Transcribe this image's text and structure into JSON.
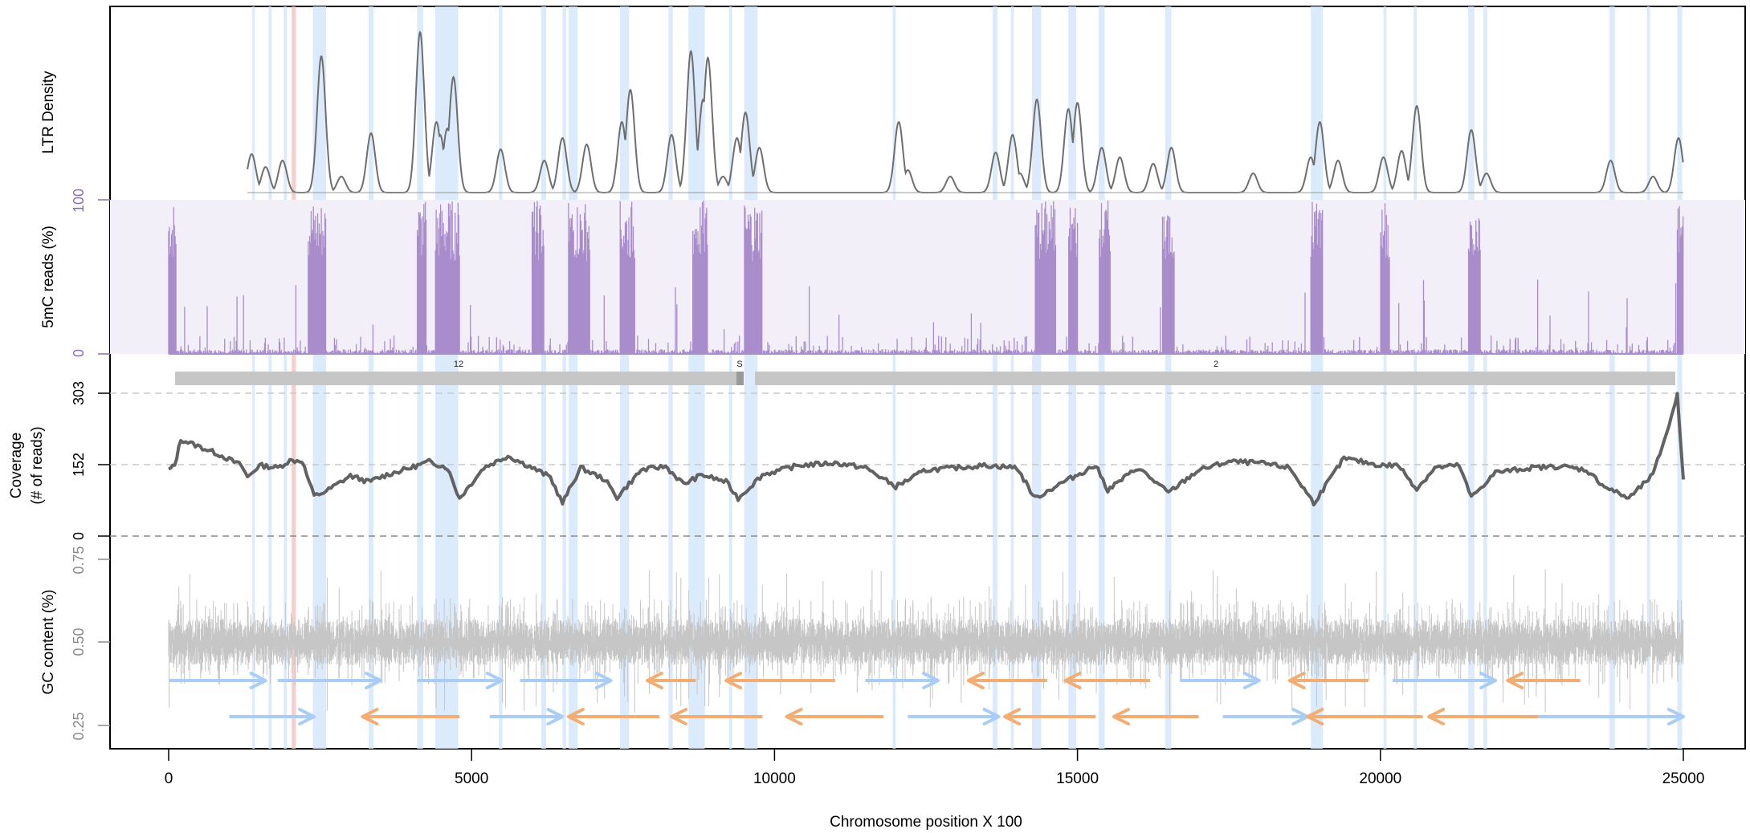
{
  "chart_data": [
    {
      "type": "line",
      "panel": "ltr_density",
      "ylabel": "LTR Density",
      "colors": {
        "line": "#6e6e6e",
        "highlight": "#d6e8fb",
        "red_highlight": "#f6c4c4"
      },
      "xlim": [
        0,
        25000
      ],
      "series": [
        {
          "values_note": "density peaks (x in Chromosome position X 100, y relative 0-1)",
          "peaks": [
            [
              1370,
              0.24
            ],
            [
              1600,
              0.16
            ],
            [
              1880,
              0.2
            ],
            [
              2520,
              0.85
            ],
            [
              2850,
              0.1
            ],
            [
              3340,
              0.37
            ],
            [
              4150,
              1.0
            ],
            [
              4420,
              0.44
            ],
            [
              4480,
              0.36
            ],
            [
              4600,
              0.4
            ],
            [
              4700,
              0.72
            ],
            [
              5480,
              0.27
            ],
            [
              6200,
              0.2
            ],
            [
              6500,
              0.34
            ],
            [
              6900,
              0.3
            ],
            [
              7480,
              0.44
            ],
            [
              7620,
              0.64
            ],
            [
              8300,
              0.36
            ],
            [
              8620,
              0.88
            ],
            [
              8820,
              0.58
            ],
            [
              8900,
              0.84
            ],
            [
              9150,
              0.1
            ],
            [
              9380,
              0.34
            ],
            [
              9520,
              0.5
            ],
            [
              9750,
              0.28
            ],
            [
              12050,
              0.44
            ],
            [
              12200,
              0.14
            ],
            [
              12900,
              0.1
            ],
            [
              13650,
              0.25
            ],
            [
              13930,
              0.36
            ],
            [
              14050,
              0.12
            ],
            [
              14330,
              0.58
            ],
            [
              14850,
              0.52
            ],
            [
              15000,
              0.56
            ],
            [
              15400,
              0.28
            ],
            [
              15700,
              0.22
            ],
            [
              16250,
              0.18
            ],
            [
              16550,
              0.28
            ],
            [
              17900,
              0.12
            ],
            [
              18850,
              0.22
            ],
            [
              19000,
              0.44
            ],
            [
              19300,
              0.2
            ],
            [
              20050,
              0.22
            ],
            [
              20350,
              0.26
            ],
            [
              20600,
              0.54
            ],
            [
              21500,
              0.39
            ],
            [
              21750,
              0.12
            ],
            [
              23800,
              0.2
            ],
            [
              24500,
              0.1
            ],
            [
              24920,
              0.34
            ]
          ]
        }
      ]
    },
    {
      "type": "bar",
      "panel": "methylation",
      "ylabel": "5mC reads (%)",
      "ylim": [
        0,
        100
      ],
      "yticks": [
        "0",
        "100"
      ],
      "colors": {
        "bar": "#a98ccb",
        "background": "#f3eff8",
        "tick": "#8a6bb8"
      },
      "blocks_note": "dense high-methylation blocks (start, end in x units)",
      "blocks": [
        [
          0,
          120
        ],
        [
          2300,
          2600
        ],
        [
          4100,
          4250
        ],
        [
          4400,
          4800
        ],
        [
          6000,
          6200
        ],
        [
          6600,
          6950
        ],
        [
          7450,
          7700
        ],
        [
          8650,
          8900
        ],
        [
          9500,
          9800
        ],
        [
          14300,
          14650
        ],
        [
          14850,
          15000
        ],
        [
          15350,
          15550
        ],
        [
          16400,
          16600
        ],
        [
          18850,
          19050
        ],
        [
          20000,
          20150
        ],
        [
          21450,
          21650
        ],
        [
          24900,
          25000
        ]
      ]
    },
    {
      "type": "line",
      "panel": "coverage",
      "ylabel": "Coverage\n(# of reads)",
      "ylim": [
        0,
        303
      ],
      "yticks": [
        "0",
        "152",
        "303"
      ],
      "colors": {
        "line": "#626262",
        "refline": "#c8c8c8",
        "zeroline": "#8a8a8a"
      },
      "contig_labels": [
        "12",
        "S",
        "2"
      ],
      "points_note": "approximate coverage profile (x, reads)",
      "points": [
        [
          0,
          140
        ],
        [
          100,
          150
        ],
        [
          200,
          205
        ],
        [
          400,
          195
        ],
        [
          800,
          175
        ],
        [
          1200,
          150
        ],
        [
          1300,
          125
        ],
        [
          1500,
          150
        ],
        [
          1800,
          145
        ],
        [
          2000,
          160
        ],
        [
          2200,
          160
        ],
        [
          2400,
          85
        ],
        [
          2600,
          95
        ],
        [
          3000,
          128
        ],
        [
          3300,
          115
        ],
        [
          3600,
          130
        ],
        [
          4000,
          145
        ],
        [
          4300,
          158
        ],
        [
          4600,
          145
        ],
        [
          4800,
          80
        ],
        [
          5200,
          145
        ],
        [
          5600,
          170
        ],
        [
          6000,
          145
        ],
        [
          6300,
          125
        ],
        [
          6500,
          70
        ],
        [
          6800,
          145
        ],
        [
          7200,
          120
        ],
        [
          7400,
          82
        ],
        [
          7800,
          140
        ],
        [
          8200,
          148
        ],
        [
          8500,
          110
        ],
        [
          8800,
          130
        ],
        [
          9200,
          115
        ],
        [
          9400,
          80
        ],
        [
          9800,
          130
        ],
        [
          10400,
          150
        ],
        [
          11000,
          155
        ],
        [
          11500,
          145
        ],
        [
          12000,
          105
        ],
        [
          12500,
          140
        ],
        [
          13000,
          145
        ],
        [
          13500,
          150
        ],
        [
          14000,
          145
        ],
        [
          14300,
          80
        ],
        [
          14700,
          110
        ],
        [
          15000,
          130
        ],
        [
          15300,
          150
        ],
        [
          15500,
          98
        ],
        [
          16000,
          145
        ],
        [
          16500,
          92
        ],
        [
          17000,
          140
        ],
        [
          17500,
          158
        ],
        [
          18000,
          155
        ],
        [
          18500,
          145
        ],
        [
          18900,
          70
        ],
        [
          19400,
          165
        ],
        [
          20000,
          150
        ],
        [
          20300,
          150
        ],
        [
          20600,
          100
        ],
        [
          20900,
          145
        ],
        [
          21300,
          150
        ],
        [
          21500,
          82
        ],
        [
          21900,
          135
        ],
        [
          22500,
          145
        ],
        [
          23000,
          148
        ],
        [
          23400,
          140
        ],
        [
          23700,
          105
        ],
        [
          24100,
          80
        ],
        [
          24500,
          130
        ],
        [
          24800,
          250
        ],
        [
          24900,
          303
        ],
        [
          25000,
          120
        ]
      ]
    },
    {
      "type": "line",
      "panel": "gc_content",
      "ylabel": "GC content (%)",
      "ylim": [
        0.2,
        0.8
      ],
      "yticks": [
        "0.25",
        "0.50",
        "0.75"
      ],
      "colors": {
        "signal": "#c6c6c6",
        "forward": "#a9cdf7",
        "reverse": "#f3ac72"
      },
      "mean": 0.5,
      "genes_note": "arrows (start, end, row 0=upper/1=lower, strand + or -)",
      "genes": [
        [
          0,
          1600,
          0,
          "+"
        ],
        [
          1800,
          3500,
          0,
          "+"
        ],
        [
          4100,
          5500,
          0,
          "+"
        ],
        [
          5800,
          7300,
          0,
          "+"
        ],
        [
          7900,
          8700,
          0,
          "-"
        ],
        [
          9200,
          11000,
          0,
          "-"
        ],
        [
          11500,
          12700,
          0,
          "+"
        ],
        [
          13200,
          14500,
          0,
          "-"
        ],
        [
          14800,
          16200,
          0,
          "-"
        ],
        [
          16700,
          18000,
          0,
          "+"
        ],
        [
          18500,
          19800,
          0,
          "-"
        ],
        [
          20200,
          21900,
          0,
          "+"
        ],
        [
          22100,
          23300,
          0,
          "-"
        ],
        [
          1000,
          2400,
          1,
          "+"
        ],
        [
          3200,
          4800,
          1,
          "-"
        ],
        [
          5300,
          6500,
          1,
          "+"
        ],
        [
          6600,
          8100,
          1,
          "-"
        ],
        [
          8300,
          9800,
          1,
          "-"
        ],
        [
          10200,
          11800,
          1,
          "-"
        ],
        [
          12200,
          13700,
          1,
          "+"
        ],
        [
          13800,
          15300,
          1,
          "-"
        ],
        [
          15600,
          17000,
          1,
          "-"
        ],
        [
          17400,
          18800,
          1,
          "+"
        ],
        [
          18800,
          20700,
          1,
          "-"
        ],
        [
          20800,
          22600,
          1,
          "-"
        ],
        [
          22600,
          25000,
          1,
          "+"
        ]
      ]
    }
  ],
  "axis": {
    "xlabel": "Chromosome position X 100",
    "xticks": [
      "0",
      "5000",
      "10000",
      "15000",
      "20000",
      "25000"
    ]
  },
  "highlights": {
    "blue": [
      [
        1380,
        1420
      ],
      [
        1650,
        1700
      ],
      [
        1900,
        1950
      ],
      [
        2380,
        2600
      ],
      [
        3300,
        3380
      ],
      [
        4100,
        4200
      ],
      [
        4400,
        4780
      ],
      [
        5450,
        5510
      ],
      [
        6150,
        6230
      ],
      [
        6500,
        6560
      ],
      [
        6600,
        6750
      ],
      [
        7450,
        7600
      ],
      [
        8250,
        8320
      ],
      [
        8580,
        8850
      ],
      [
        9250,
        9300
      ],
      [
        9500,
        9720
      ],
      [
        11950,
        12000
      ],
      [
        13600,
        13680
      ],
      [
        13900,
        13950
      ],
      [
        14250,
        14400
      ],
      [
        14850,
        14980
      ],
      [
        15350,
        15450
      ],
      [
        16450,
        16550
      ],
      [
        18850,
        19050
      ],
      [
        20050,
        20100
      ],
      [
        20550,
        20600
      ],
      [
        21450,
        21550
      ],
      [
        21700,
        21760
      ],
      [
        23780,
        23870
      ],
      [
        24400,
        24450
      ],
      [
        24900,
        24980
      ]
    ],
    "red": [
      [
        2030,
        2100
      ]
    ]
  }
}
